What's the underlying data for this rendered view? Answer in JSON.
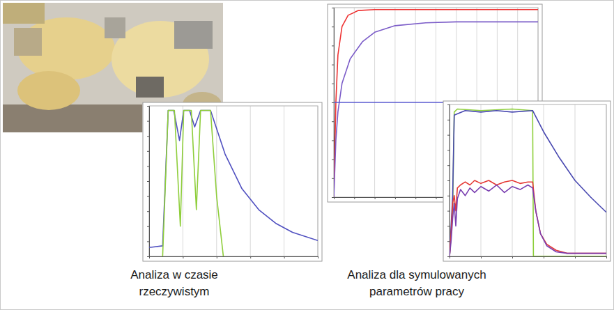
{
  "chart_data": [
    {
      "type": "line",
      "xlim": [
        0,
        100
      ],
      "ylim": [
        0,
        100
      ],
      "xticks": [
        0,
        20,
        40,
        60,
        80,
        100
      ],
      "yticks": [
        0,
        10,
        20,
        30,
        40,
        50,
        60,
        70,
        80,
        90,
        100
      ],
      "grid": "x",
      "tick_labels": false,
      "series": [
        {
          "color": "#5050c0",
          "x": [
            0,
            1,
            8,
            11.3,
            14.6,
            18,
            20.5,
            24,
            27,
            30.5,
            36.4,
            45,
            55,
            65,
            75,
            85,
            100
          ],
          "values": [
            6,
            6,
            7,
            97,
            97,
            77,
            97,
            97,
            86,
            97,
            97,
            68,
            45,
            31,
            22,
            16,
            10.5
          ]
        },
        {
          "color": "#8fce3c",
          "x": [
            8,
            11.3,
            15,
            18.5,
            20.5,
            25,
            28,
            30.5,
            36.4,
            40,
            44
          ],
          "values": [
            0,
            97,
            97,
            20,
            97,
            97,
            31,
            97,
            97,
            40,
            0
          ]
        }
      ]
    },
    {
      "type": "line",
      "xlim": [
        0,
        100
      ],
      "ylim": [
        0,
        100
      ],
      "xticks": [
        0,
        10,
        20,
        30,
        40,
        50,
        60,
        70,
        80,
        90,
        100
      ],
      "yticks": [
        0,
        10,
        20,
        30,
        40,
        50,
        60,
        70,
        80,
        90,
        100
      ],
      "grid": "x",
      "tick_labels": false,
      "series": [
        {
          "color": "#ee3333",
          "x": [
            0,
            1,
            2,
            4,
            7,
            12,
            20,
            100
          ],
          "values": [
            0,
            50,
            75,
            90,
            96,
            98.5,
            99,
            99
          ]
        },
        {
          "color": "#7b5cc8",
          "x": [
            0,
            1,
            2,
            4,
            8,
            14,
            20,
            30,
            45,
            60,
            100
          ],
          "values": [
            0,
            30,
            45,
            60,
            73,
            82,
            87,
            90.5,
            92,
            92.5,
            92.5
          ]
        },
        {
          "color": "#5a5ad0",
          "x": [
            0,
            100
          ],
          "values": [
            50,
            50
          ]
        }
      ]
    },
    {
      "type": "line",
      "xlim": [
        0,
        100
      ],
      "ylim": [
        0,
        100
      ],
      "xticks": [
        0,
        20,
        40,
        60,
        80,
        100
      ],
      "yticks": [
        0,
        10,
        20,
        30,
        40,
        50,
        60,
        70,
        80,
        90,
        100
      ],
      "grid": "x",
      "tick_labels": false,
      "series": [
        {
          "color": "#8ecf3c",
          "x": [
            0,
            2,
            3,
            5,
            20,
            40,
            53,
            53.5,
            100
          ],
          "values": [
            0,
            30,
            95,
            97,
            96,
            97,
            96,
            0,
            0
          ]
        },
        {
          "color": "#4848b0",
          "x": [
            0,
            2,
            3,
            10,
            20,
            30,
            40,
            53,
            60,
            70,
            80,
            90,
            100
          ],
          "values": [
            0,
            40,
            93,
            96,
            95,
            96,
            95,
            96,
            82,
            65,
            50,
            39,
            29
          ]
        },
        {
          "color": "#e53935",
          "x": [
            0,
            1,
            2,
            3,
            4,
            5,
            7,
            10,
            13,
            16,
            20,
            25,
            30,
            35,
            40,
            45,
            50,
            53,
            55,
            58,
            62,
            68,
            75,
            100
          ],
          "values": [
            0,
            15,
            35,
            40,
            30,
            45,
            47,
            49,
            47,
            50,
            48,
            50,
            47,
            49,
            50,
            48,
            49,
            49,
            30,
            15,
            8,
            4,
            2,
            2
          ]
        },
        {
          "color": "#7a3fb0",
          "x": [
            0,
            1,
            2,
            3,
            4,
            5,
            7,
            10,
            13,
            16,
            20,
            25,
            30,
            35,
            40,
            45,
            50,
            53,
            55,
            58,
            62,
            68,
            75,
            100
          ],
          "values": [
            0,
            10,
            25,
            35,
            20,
            38,
            44,
            40,
            45,
            42,
            46,
            43,
            47,
            42,
            46,
            44,
            47,
            45,
            30,
            15,
            7,
            3,
            2,
            2
          ]
        }
      ]
    }
  ],
  "captions": [
    "Analiza w czasie rzeczywistym",
    "Analiza dla symulowanych parametrów pracy"
  ]
}
